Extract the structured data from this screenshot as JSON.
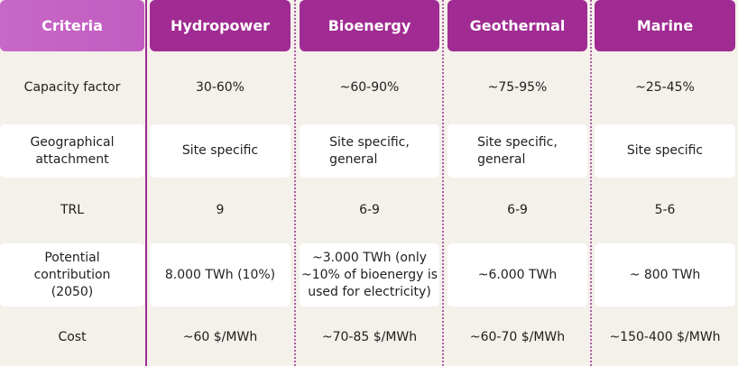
{
  "table": {
    "columns": [
      "Criteria",
      "Hydropower",
      "Bioenergy",
      "Geothermal",
      "Marine"
    ],
    "rows": [
      {
        "cells": [
          "Capacity factor",
          "30-60%",
          "~60-90%",
          "~75-95%",
          "~25-45%"
        ]
      },
      {
        "cells": [
          "Geographical\nattachment",
          "Site specific",
          "Site specific,\ngeneral",
          "Site specific,\ngeneral",
          "Site specific"
        ]
      },
      {
        "cells": [
          "TRL",
          "9",
          "6-9",
          "6-9",
          "5-6"
        ]
      },
      {
        "cells": [
          "Potential\ncontribution\n(2050)",
          "8.000 TWh (10%)",
          "~3.000 TWh (only\n~10% of bioenergy is\nused for electricity)",
          "~6.000 TWh",
          "~ 800 TWh"
        ]
      },
      {
        "cells": [
          "Cost",
          "~60 $/MWh",
          "~70-85 $/MWh",
          "~60-70 $/MWh",
          "~150-400 $/MWh"
        ]
      }
    ]
  }
}
